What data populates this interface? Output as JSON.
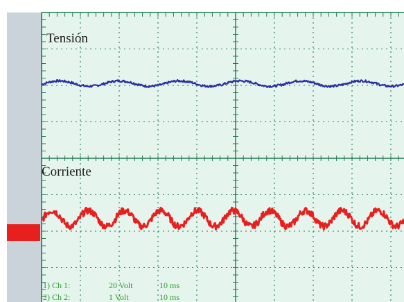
{
  "chart_data": {
    "type": "line",
    "title": "",
    "xlabel": "",
    "ylabel": "",
    "grid": true,
    "x_divisions": 10,
    "y_divisions": 8,
    "xlim": [
      0,
      10
    ],
    "ylim": [
      -4,
      4
    ],
    "traces": [
      {
        "label": "Tensión",
        "color": "#2b2f9e",
        "baseline_div": 2.05,
        "ripple_div": 0.12,
        "ripple_cycles": 6,
        "noise_div": 0.03
      },
      {
        "label": "Corriente",
        "color": "#e8201d",
        "baseline_div": -1.65,
        "ripple_div": 0.35,
        "ripple_cycles": 10,
        "noise_div": 0.09
      }
    ],
    "channel_info": [
      {
        "channel": "1) Ch 1:",
        "volts": "20 Volt",
        "time": "10 ms"
      },
      {
        "channel": "2) Ch 2:",
        "volts": "1 Volt",
        "time": "10 ms"
      }
    ],
    "marker_color": "#e8201d",
    "grid_color": "#1f7a52",
    "background_color": "#e6f4ee",
    "left_panel_color": "#c9d3d9"
  }
}
